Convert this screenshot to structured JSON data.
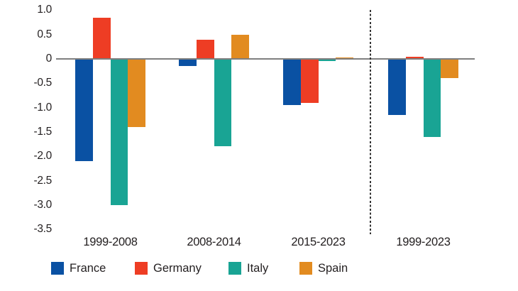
{
  "chart_data": {
    "type": "bar",
    "categories": [
      "1999-2008",
      "2008-2014",
      "2015-2023",
      "1999-2023"
    ],
    "series": [
      {
        "name": "France",
        "color": "#0a51a3",
        "values": [
          -2.1,
          -0.15,
          -0.95,
          -1.15
        ]
      },
      {
        "name": "Germany",
        "color": "#ee3d24",
        "values": [
          0.85,
          0.4,
          -0.9,
          0.05
        ]
      },
      {
        "name": "Italy",
        "color": "#19a494",
        "values": [
          -3.0,
          -1.8,
          -0.05,
          -1.6
        ]
      },
      {
        "name": "Spain",
        "color": "#e28b20",
        "values": [
          -1.4,
          0.5,
          0.03,
          -0.4
        ]
      }
    ],
    "yticks": [
      1.0,
      0.5,
      0,
      -0.5,
      -1.0,
      -1.5,
      -2.0,
      -2.5,
      -3.0,
      -3.5
    ],
    "ytick_labels": [
      "1.0",
      "0.5",
      "0",
      "-0.5",
      "-1.0",
      "-1.5",
      "-2.0",
      "-2.5",
      "-3.0",
      "-3.5"
    ],
    "ylim": [
      -3.5,
      1.0
    ],
    "title": "",
    "xlabel": "",
    "ylabel": "",
    "grid": false,
    "legend_position": "bottom",
    "separator": {
      "between_categories": [
        "2015-2023",
        "1999-2023"
      ],
      "style": "dashed"
    },
    "colors": {
      "axis": "#7f7f7f",
      "text": "#231f20",
      "separator": "#333333",
      "background": "#ffffff"
    }
  }
}
